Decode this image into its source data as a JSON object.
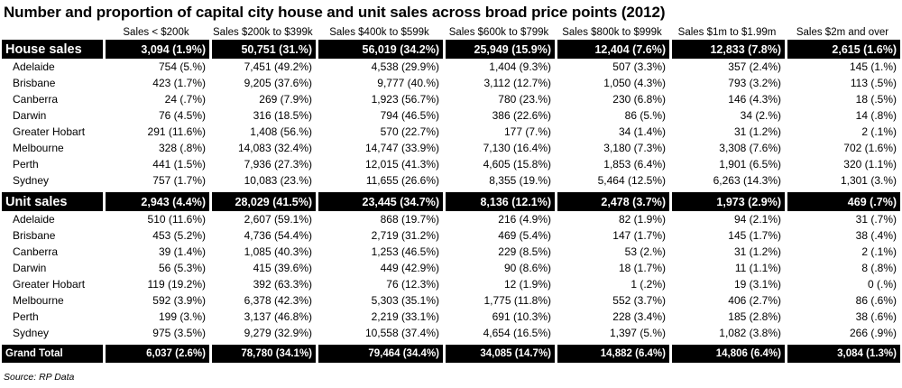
{
  "title": "Number and proportion of capital city house and unit sales across broad price points (2012)",
  "columns": [
    "Sales < $200k",
    "Sales $200k to $399k",
    "Sales $400k to $599k",
    "Sales $600k to $799k",
    "Sales $800k to $999k",
    "Sales $1m to $1.99m",
    "Sales $2m and over"
  ],
  "sections": [
    {
      "name": "House sales",
      "totals": [
        "3,094 (1.9%)",
        "50,751 (31.%)",
        "56,019 (34.2%)",
        "25,949 (15.9%)",
        "12,404 (7.6%)",
        "12,833 (7.8%)",
        "2,615 (1.6%)"
      ],
      "rows": [
        {
          "city": "Adelaide",
          "values": [
            "754 (5.%)",
            "7,451 (49.2%)",
            "4,538 (29.9%)",
            "1,404 (9.3%)",
            "507 (3.3%)",
            "357 (2.4%)",
            "145 (1.%)"
          ]
        },
        {
          "city": "Brisbane",
          "values": [
            "423 (1.7%)",
            "9,205 (37.6%)",
            "9,777 (40.%)",
            "3,112 (12.7%)",
            "1,050 (4.3%)",
            "793 (3.2%)",
            "113 (.5%)"
          ]
        },
        {
          "city": "Canberra",
          "values": [
            "24 (.7%)",
            "269 (7.9%)",
            "1,923 (56.7%)",
            "780 (23.%)",
            "230 (6.8%)",
            "146 (4.3%)",
            "18 (.5%)"
          ]
        },
        {
          "city": "Darwin",
          "values": [
            "76 (4.5%)",
            "316 (18.5%)",
            "794 (46.5%)",
            "386 (22.6%)",
            "86 (5.%)",
            "34 (2.%)",
            "14 (.8%)"
          ]
        },
        {
          "city": "Greater Hobart",
          "values": [
            "291 (11.6%)",
            "1,408 (56.%)",
            "570 (22.7%)",
            "177 (7.%)",
            "34 (1.4%)",
            "31 (1.2%)",
            "2 (.1%)"
          ]
        },
        {
          "city": "Melbourne",
          "values": [
            "328 (.8%)",
            "14,083 (32.4%)",
            "14,747 (33.9%)",
            "7,130 (16.4%)",
            "3,180 (7.3%)",
            "3,308 (7.6%)",
            "702 (1.6%)"
          ]
        },
        {
          "city": "Perth",
          "values": [
            "441 (1.5%)",
            "7,936 (27.3%)",
            "12,015 (41.3%)",
            "4,605 (15.8%)",
            "1,853 (6.4%)",
            "1,901 (6.5%)",
            "320 (1.1%)"
          ]
        },
        {
          "city": "Sydney",
          "values": [
            "757 (1.7%)",
            "10,083 (23.%)",
            "11,655 (26.6%)",
            "8,355 (19.%)",
            "5,464 (12.5%)",
            "6,263 (14.3%)",
            "1,301 (3.%)"
          ]
        }
      ]
    },
    {
      "name": "Unit sales",
      "totals": [
        "2,943 (4.4%)",
        "28,029 (41.5%)",
        "23,445 (34.7%)",
        "8,136 (12.1%)",
        "2,478 (3.7%)",
        "1,973 (2.9%)",
        "469 (.7%)"
      ],
      "rows": [
        {
          "city": "Adelaide",
          "values": [
            "510 (11.6%)",
            "2,607 (59.1%)",
            "868 (19.7%)",
            "216 (4.9%)",
            "82 (1.9%)",
            "94 (2.1%)",
            "31 (.7%)"
          ]
        },
        {
          "city": "Brisbane",
          "values": [
            "453 (5.2%)",
            "4,736 (54.4%)",
            "2,719 (31.2%)",
            "469 (5.4%)",
            "147 (1.7%)",
            "145 (1.7%)",
            "38 (.4%)"
          ]
        },
        {
          "city": "Canberra",
          "values": [
            "39 (1.4%)",
            "1,085 (40.3%)",
            "1,253 (46.5%)",
            "229 (8.5%)",
            "53 (2.%)",
            "31 (1.2%)",
            "2 (.1%)"
          ]
        },
        {
          "city": "Darwin",
          "values": [
            "56 (5.3%)",
            "415 (39.6%)",
            "449 (42.9%)",
            "90 (8.6%)",
            "18 (1.7%)",
            "11 (1.1%)",
            "8 (.8%)"
          ]
        },
        {
          "city": "Greater Hobart",
          "values": [
            "119 (19.2%)",
            "392 (63.3%)",
            "76 (12.3%)",
            "12 (1.9%)",
            "1 (.2%)",
            "19 (3.1%)",
            "0 (.%)"
          ]
        },
        {
          "city": "Melbourne",
          "values": [
            "592 (3.9%)",
            "6,378 (42.3%)",
            "5,303 (35.1%)",
            "1,775 (11.8%)",
            "552 (3.7%)",
            "406 (2.7%)",
            "86 (.6%)"
          ]
        },
        {
          "city": "Perth",
          "values": [
            "199 (3.%)",
            "3,137 (46.8%)",
            "2,219 (33.1%)",
            "691 (10.3%)",
            "228 (3.4%)",
            "185 (2.8%)",
            "38 (.6%)"
          ]
        },
        {
          "city": "Sydney",
          "values": [
            "975 (3.5%)",
            "9,279 (32.9%)",
            "10,558 (37.4%)",
            "4,654 (16.5%)",
            "1,397 (5.%)",
            "1,082 (3.8%)",
            "266 (.9%)"
          ]
        }
      ]
    }
  ],
  "grand_total": {
    "label": "Grand Total",
    "values": [
      "6,037 (2.6%)",
      "78,780 (34.1%)",
      "79,464 (34.4%)",
      "34,085 (14.7%)",
      "14,882 (6.4%)",
      "14,806 (6.4%)",
      "3,084 (1.3%)"
    ]
  },
  "source": "Source:  RP Data",
  "colors": {
    "header_bg": "#000000",
    "header_text": "#ffffff",
    "background": "#ffffff"
  }
}
